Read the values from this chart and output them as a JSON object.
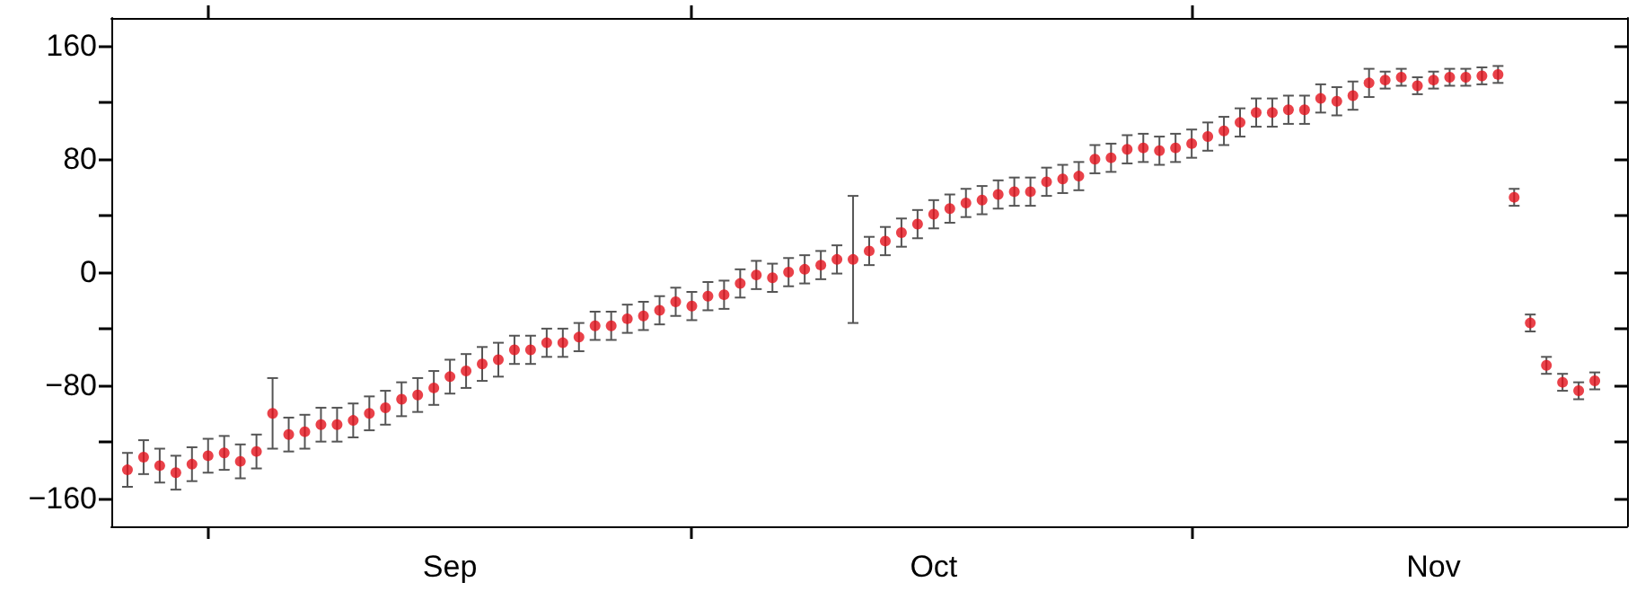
{
  "chart_data": {
    "type": "scatter",
    "x": [
      "--08-27",
      "--08-28",
      "--08-29",
      "--08-30",
      "--08-31",
      "--09-01",
      "--09-02",
      "--09-03",
      "--09-04",
      "--09-05",
      "--09-06",
      "--09-07",
      "--09-08",
      "--09-09",
      "--09-10",
      "--09-11",
      "--09-12",
      "--09-13",
      "--09-14",
      "--09-15",
      "--09-16",
      "--09-17",
      "--09-18",
      "--09-19",
      "--09-20",
      "--09-21",
      "--09-22",
      "--09-23",
      "--09-24",
      "--09-25",
      "--09-26",
      "--09-27",
      "--09-28",
      "--09-29",
      "--09-30",
      "--10-01",
      "--10-02",
      "--10-03",
      "--10-04",
      "--10-05",
      "--10-06",
      "--10-07",
      "--10-08",
      "--10-09",
      "--10-10",
      "--10-11",
      "--10-12",
      "--10-13",
      "--10-14",
      "--10-15",
      "--10-16",
      "--10-17",
      "--10-18",
      "--10-19",
      "--10-20",
      "--10-21",
      "--10-22",
      "--10-23",
      "--10-24",
      "--10-25",
      "--10-26",
      "--10-27",
      "--10-28",
      "--10-29",
      "--10-30",
      "--10-31",
      "--11-01",
      "--11-02",
      "--11-03",
      "--11-04",
      "--11-05",
      "--11-06",
      "--11-07",
      "--11-08",
      "--11-09",
      "--11-10",
      "--11-11",
      "--11-12",
      "--11-13",
      "--11-14",
      "--11-15",
      "--11-16",
      "--11-17",
      "--11-18",
      "--11-19",
      "--11-20",
      "--11-21",
      "--11-22",
      "--11-23",
      "--11-24",
      "--11-25",
      "--11-26"
    ],
    "values": [
      -140,
      -131,
      -137,
      -142,
      -136,
      -130,
      -128,
      -134,
      -127,
      -100,
      -115,
      -113,
      -108,
      -108,
      -105,
      -100,
      -96,
      -90,
      -87,
      -82,
      -74,
      -70,
      -65,
      -62,
      -55,
      -55,
      -50,
      -50,
      -46,
      -38,
      -38,
      -33,
      -31,
      -27,
      -21,
      -24,
      -17,
      -16,
      -8,
      -2,
      -4,
      0,
      2,
      5,
      9,
      9,
      15,
      22,
      28,
      34,
      41,
      45,
      49,
      51,
      55,
      57,
      57,
      64,
      66,
      68,
      80,
      81,
      87,
      88,
      86,
      88,
      91,
      96,
      100,
      106,
      113,
      113,
      115,
      115,
      123,
      121,
      125,
      134,
      136,
      138,
      132,
      136,
      138,
      138,
      139,
      140,
      53,
      -36,
      -66,
      -78,
      -84,
      -77
    ],
    "errors": [
      12,
      12,
      12,
      12,
      12,
      12,
      12,
      12,
      12,
      25,
      12,
      12,
      12,
      12,
      12,
      12,
      12,
      12,
      12,
      12,
      12,
      12,
      12,
      12,
      10,
      10,
      10,
      10,
      10,
      10,
      10,
      10,
      10,
      10,
      10,
      10,
      10,
      10,
      10,
      10,
      10,
      10,
      10,
      10,
      10,
      45,
      10,
      10,
      10,
      10,
      10,
      10,
      10,
      10,
      10,
      10,
      10,
      10,
      10,
      10,
      10,
      10,
      10,
      10,
      10,
      10,
      10,
      10,
      10,
      10,
      10,
      10,
      10,
      10,
      10,
      10,
      10,
      10,
      6,
      6,
      6,
      6,
      6,
      6,
      6,
      6,
      6,
      6,
      6,
      6,
      6,
      6
    ],
    "color": "#e3121b",
    "marker": "circle",
    "xlim": [
      "--08-26",
      "--11-28"
    ],
    "xticks": [
      {
        "value": "--09-01",
        "label": null
      },
      {
        "value": "--09-16",
        "label": "Sep"
      },
      {
        "value": "--10-01",
        "label": null
      },
      {
        "value": "--10-16",
        "label": "Oct"
      },
      {
        "value": "--11-01",
        "label": null
      },
      {
        "value": "--11-16",
        "label": "Nov"
      }
    ],
    "ylim": [
      -180,
      180
    ],
    "yticks": [
      -160,
      {
        "value": -120,
        "label": null
      },
      -80,
      {
        "value": -40,
        "label": null
      },
      0,
      {
        "value": 40,
        "label": null
      },
      80,
      {
        "value": 120,
        "label": null
      },
      160
    ],
    "grid": false,
    "legend": false
  }
}
